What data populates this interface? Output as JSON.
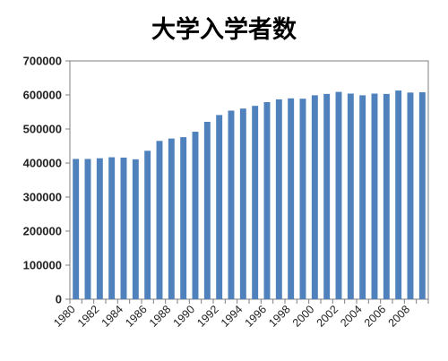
{
  "chart_data": {
    "type": "bar",
    "title": "大学入学者数",
    "xlabel": "",
    "ylabel": "",
    "ylim": [
      0,
      700000
    ],
    "yticks": [
      0,
      100000,
      200000,
      300000,
      400000,
      500000,
      600000,
      700000
    ],
    "ytick_labels": [
      "0",
      "100000",
      "200000",
      "300000",
      "400000",
      "500000",
      "600000",
      "700000"
    ],
    "grid": false,
    "legend": "none",
    "bar_color": "#4F81BD",
    "categories": [
      "1980",
      "1981",
      "1982",
      "1983",
      "1984",
      "1985",
      "1986",
      "1987",
      "1988",
      "1989",
      "1990",
      "1991",
      "1992",
      "1993",
      "1994",
      "1995",
      "1996",
      "1997",
      "1998",
      "1999",
      "2000",
      "2001",
      "2002",
      "2003",
      "2004",
      "2005",
      "2006",
      "2007",
      "2008",
      "2009"
    ],
    "xtick_labels": [
      "1980",
      "1982",
      "1984",
      "1986",
      "1988",
      "1990",
      "1992",
      "1994",
      "1996",
      "1998",
      "2000",
      "2002",
      "2004",
      "2006",
      "2008"
    ],
    "values": [
      412000,
      412000,
      414000,
      417000,
      416000,
      411000,
      436000,
      465000,
      472000,
      476000,
      492000,
      521000,
      541000,
      554000,
      560000,
      568000,
      579000,
      587000,
      590000,
      589000,
      599000,
      603000,
      609000,
      604000,
      599000,
      604000,
      603000,
      613000,
      607000,
      608000
    ]
  }
}
